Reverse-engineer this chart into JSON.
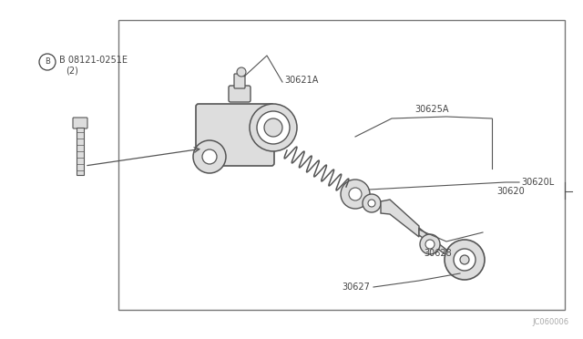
{
  "bg_color": "#ffffff",
  "box_color": "#777777",
  "line_color": "#555555",
  "part_color": "#dddddd",
  "part_edge_color": "#555555",
  "text_color": "#444444",
  "watermark_color": "#aaaaaa",
  "footer_code": "JC060006",
  "labels": {
    "bolt_ref": "B 08121-0251E",
    "bolt_qty": "(2)",
    "l30621A": "30621A",
    "l30625A": "30625A",
    "l30620L": "30620L",
    "l30620": "30620",
    "l30628": "30628",
    "l30627": "30627"
  }
}
